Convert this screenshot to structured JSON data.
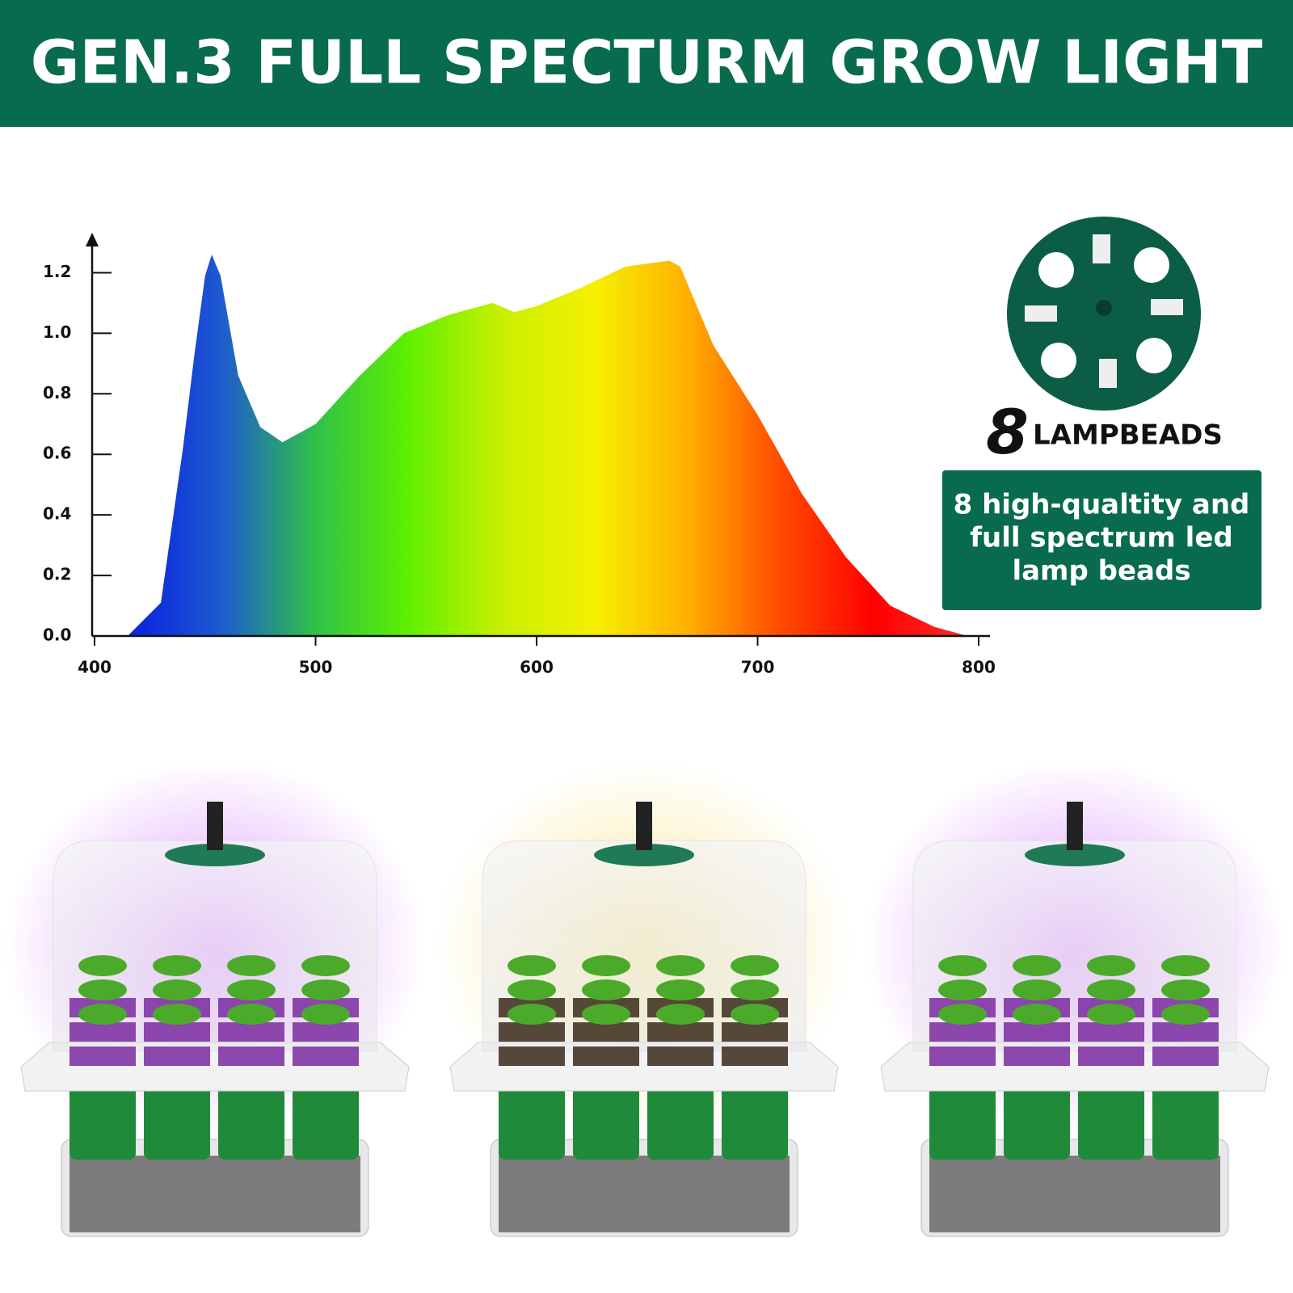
{
  "header": {
    "title": "GEN.3 FULL SPECTURM GROW LIGHT"
  },
  "lampbeads": {
    "count": "8",
    "label": "LAMPBEADS",
    "description": [
      "8 high-qualtity and",
      "full spectrum led",
      "lamp beads"
    ]
  },
  "chart_data": {
    "type": "area",
    "x": [
      415,
      430,
      440,
      445,
      450,
      453,
      457,
      465,
      475,
      485,
      500,
      520,
      540,
      560,
      580,
      590,
      600,
      620,
      640,
      660,
      665,
      680,
      700,
      720,
      740,
      760,
      780,
      795
    ],
    "values": [
      0,
      0.11,
      0.62,
      0.92,
      1.19,
      1.26,
      1.19,
      0.86,
      0.69,
      0.64,
      0.7,
      0.86,
      1.0,
      1.06,
      1.1,
      1.07,
      1.09,
      1.15,
      1.22,
      1.24,
      1.22,
      0.96,
      0.73,
      0.47,
      0.26,
      0.1,
      0.03,
      0
    ],
    "fill_gradient": [
      "#0a1fe0",
      "#1e5ad0",
      "#2fc04a",
      "#5ef000",
      "#c8f000",
      "#f5f000",
      "#ffb000",
      "#ff4a00",
      "#ff0000",
      "#ff2a2a"
    ],
    "xlim": [
      400,
      800
    ],
    "ylim": [
      0,
      1.3
    ],
    "xticks": [
      400,
      500,
      600,
      700,
      800
    ],
    "yticks": [
      {
        "value": 0,
        "label": "0.0"
      },
      0.2,
      0.4,
      0.6,
      0.8,
      {
        "value": 1,
        "label": "1.0"
      },
      1.2
    ]
  }
}
